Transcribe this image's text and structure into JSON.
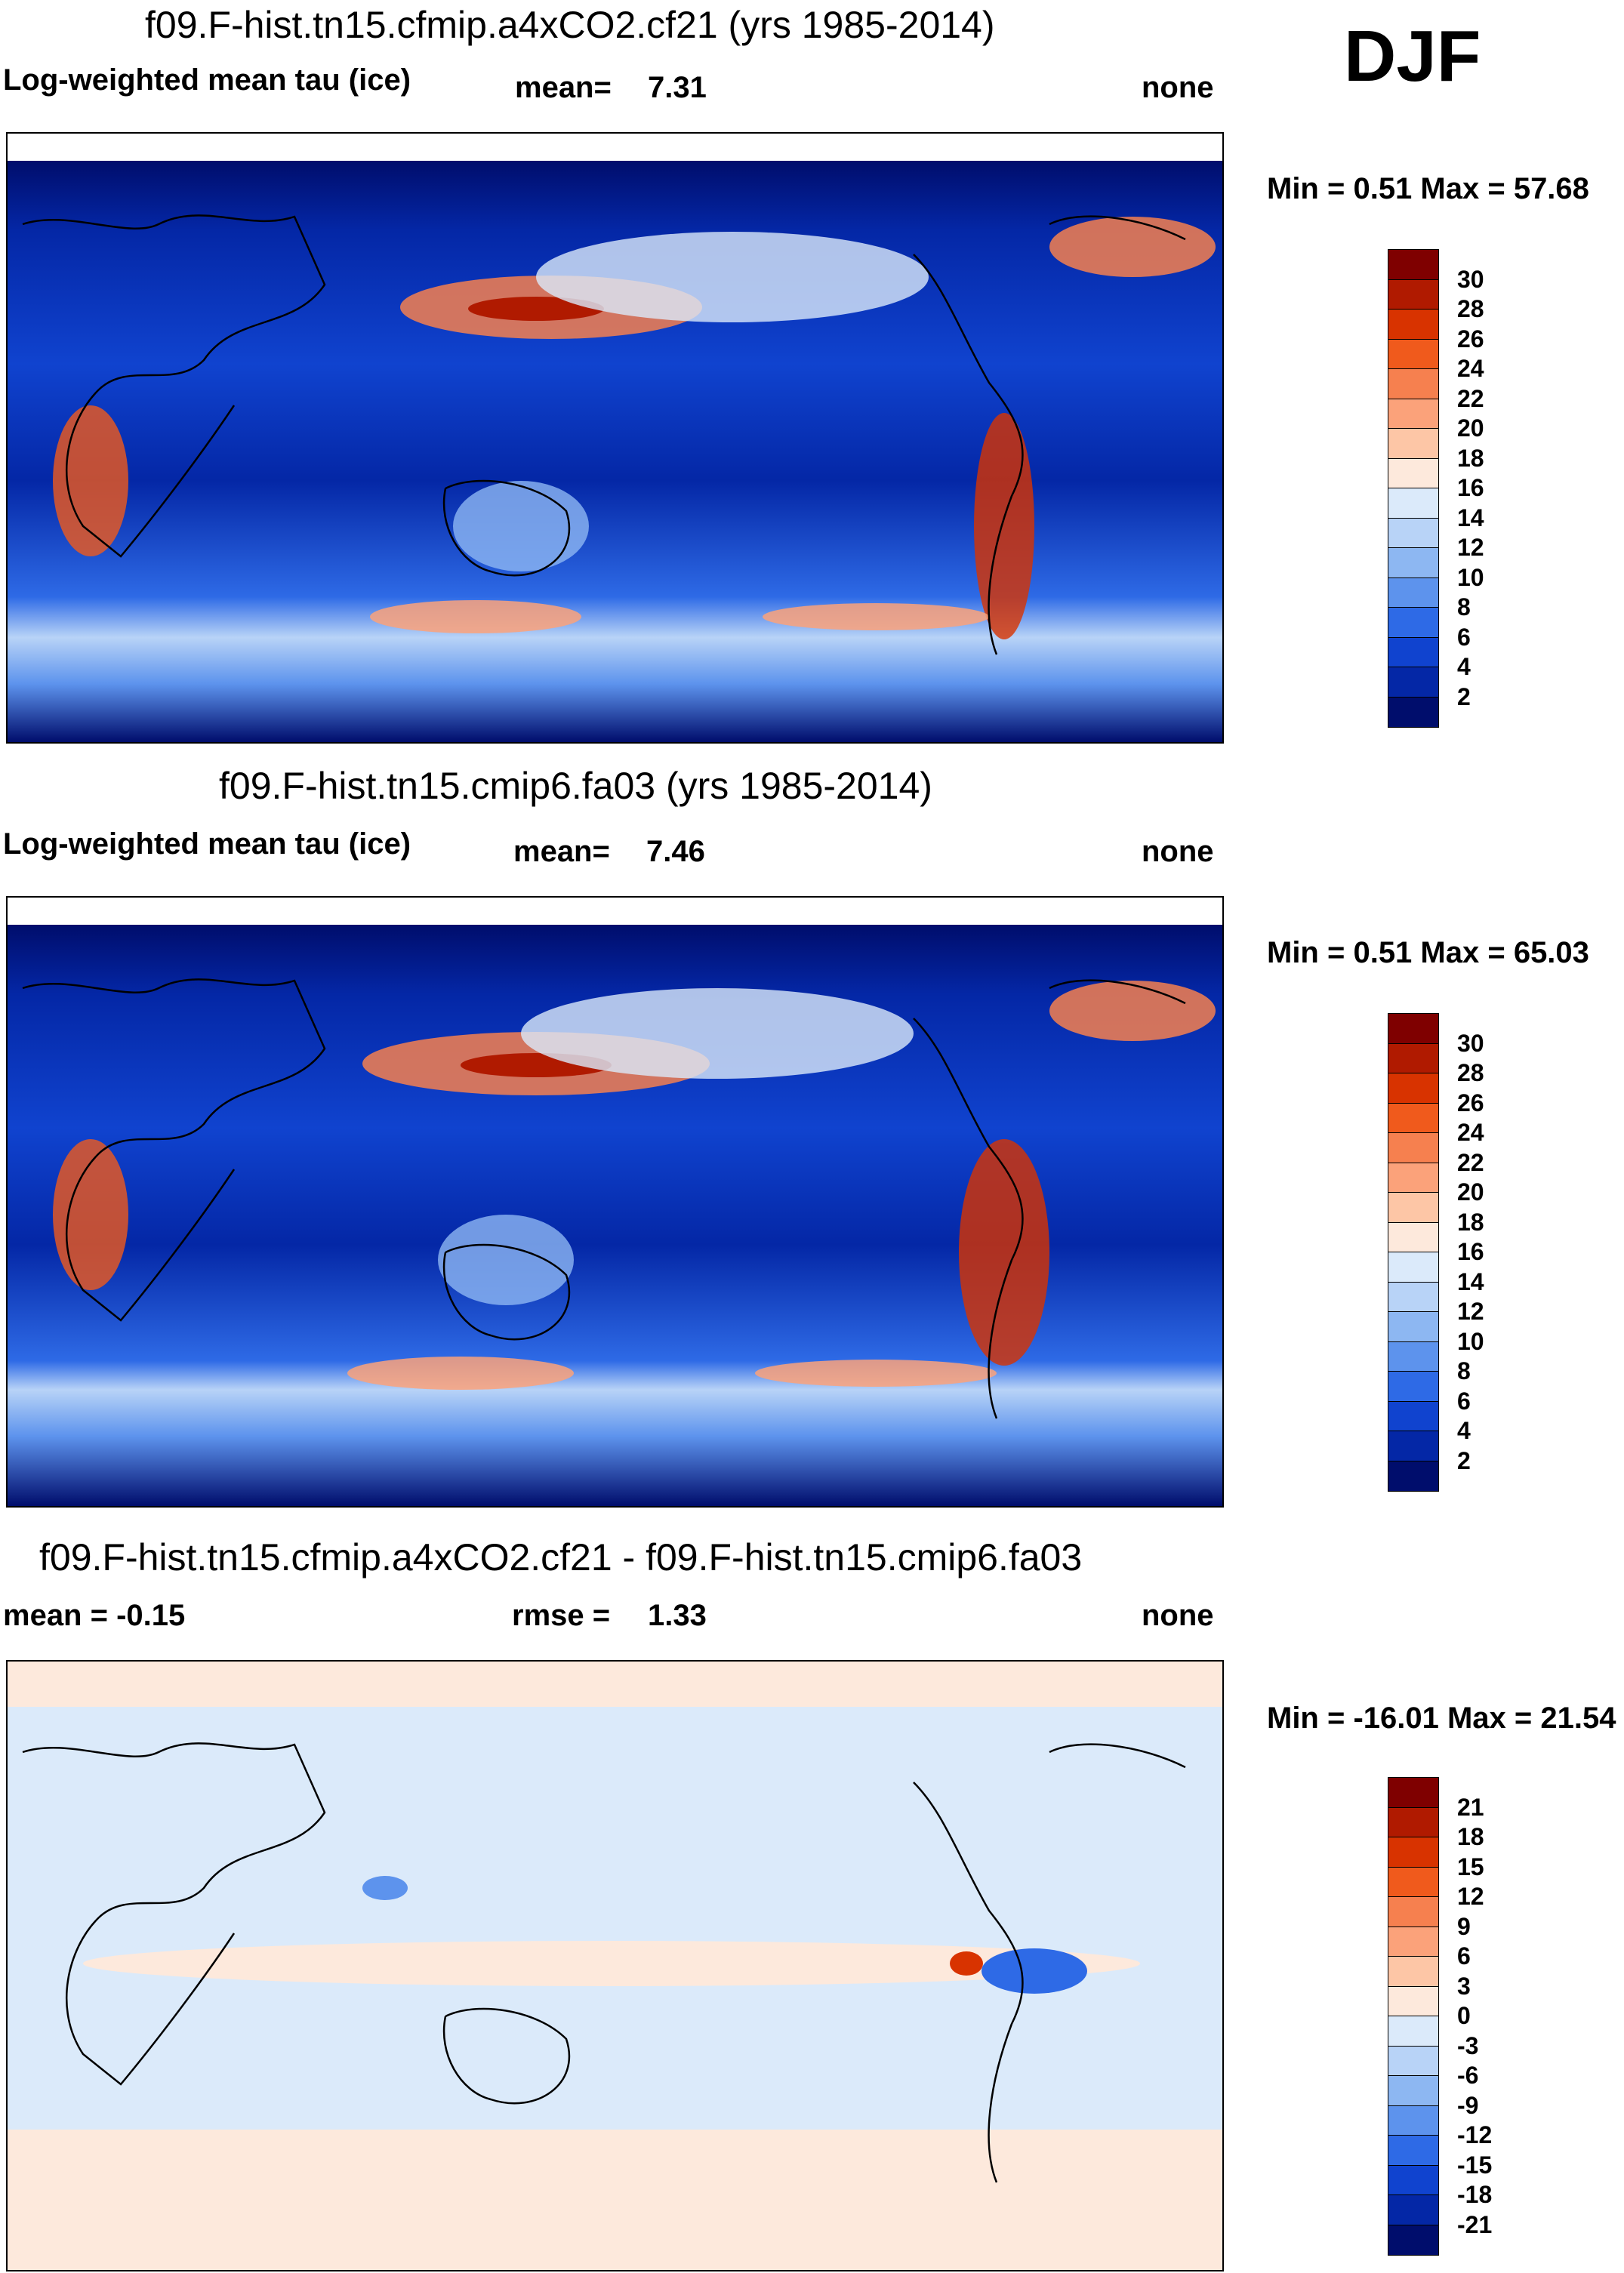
{
  "season": "DJF",
  "panels": [
    {
      "title": "f09.F-hist.tn15.cfmip.a4xCO2.cf21 (yrs 1985-2014)",
      "left_label": "Log-weighted mean tau (ice)",
      "stat_label": "mean=",
      "stat_value": "7.31",
      "right_label": "none",
      "minmax": "Min =   0.51 Max =  57.68",
      "colorbar_labels": [
        "30",
        "28",
        "26",
        "24",
        "22",
        "20",
        "18",
        "16",
        "14",
        "12",
        "10",
        "8",
        "6",
        "4",
        "2"
      ],
      "colors": [
        "#7f0000",
        "#b01a00",
        "#d83300",
        "#f05a1c",
        "#f6804f",
        "#fba27a",
        "#fdc6a6",
        "#fde9dc",
        "#dbeafa",
        "#b8d3f7",
        "#8db7f2",
        "#5d93ed",
        "#2e6ae6",
        "#1043cf",
        "#0427a6",
        "#000d6c"
      ]
    },
    {
      "title": "f09.F-hist.tn15.cmip6.fa03 (yrs 1985-2014)",
      "left_label": "Log-weighted mean tau (ice)",
      "stat_label": "mean=",
      "stat_value": "7.46",
      "right_label": "none",
      "minmax": "Min =   0.51 Max =  65.03",
      "colorbar_labels": [
        "30",
        "28",
        "26",
        "24",
        "22",
        "20",
        "18",
        "16",
        "14",
        "12",
        "10",
        "8",
        "6",
        "4",
        "2"
      ],
      "colors": [
        "#7f0000",
        "#b01a00",
        "#d83300",
        "#f05a1c",
        "#f6804f",
        "#fba27a",
        "#fdc6a6",
        "#fde9dc",
        "#dbeafa",
        "#b8d3f7",
        "#8db7f2",
        "#5d93ed",
        "#2e6ae6",
        "#1043cf",
        "#0427a6",
        "#000d6c"
      ]
    },
    {
      "title": "f09.F-hist.tn15.cfmip.a4xCO2.cf21 - f09.F-hist.tn15.cmip6.fa03",
      "left_label": "mean =  -0.15",
      "stat_label": "rmse =",
      "stat_value": "1.33",
      "right_label": "none",
      "minmax": "Min = -16.01 Max =  21.54",
      "colorbar_labels": [
        "21",
        "18",
        "15",
        "12",
        "9",
        "6",
        "3",
        "0",
        "-3",
        "-6",
        "-9",
        "-12",
        "-15",
        "-18",
        "-21"
      ],
      "colors": [
        "#7f0000",
        "#b01a00",
        "#d83300",
        "#f05a1c",
        "#f6804f",
        "#fba27a",
        "#fdc6a6",
        "#fde9dc",
        "#dbeafa",
        "#b8d3f7",
        "#8db7f2",
        "#5d93ed",
        "#2e6ae6",
        "#1043cf",
        "#0427a6",
        "#000d6c"
      ]
    }
  ],
  "chart_data": [
    {
      "type": "heatmap",
      "title": "f09.F-hist.tn15.cfmip.a4xCO2.cf21 (yrs 1985-2014)",
      "variable": "Log-weighted mean tau (ice)",
      "mean": 7.31,
      "min": 0.51,
      "max": 57.68,
      "levels": [
        2,
        4,
        6,
        8,
        10,
        12,
        14,
        16,
        18,
        20,
        22,
        24,
        26,
        28,
        30
      ]
    },
    {
      "type": "heatmap",
      "title": "f09.F-hist.tn15.cmip6.fa03 (yrs 1985-2014)",
      "variable": "Log-weighted mean tau (ice)",
      "mean": 7.46,
      "min": 0.51,
      "max": 65.03,
      "levels": [
        2,
        4,
        6,
        8,
        10,
        12,
        14,
        16,
        18,
        20,
        22,
        24,
        26,
        28,
        30
      ]
    },
    {
      "type": "heatmap",
      "title": "f09.F-hist.tn15.cfmip.a4xCO2.cf21 - f09.F-hist.tn15.cmip6.fa03",
      "mean": -0.15,
      "rmse": 1.33,
      "min": -16.01,
      "max": 21.54,
      "levels": [
        -21,
        -18,
        -15,
        -12,
        -9,
        -6,
        -3,
        0,
        3,
        6,
        9,
        12,
        15,
        18,
        21
      ]
    }
  ]
}
